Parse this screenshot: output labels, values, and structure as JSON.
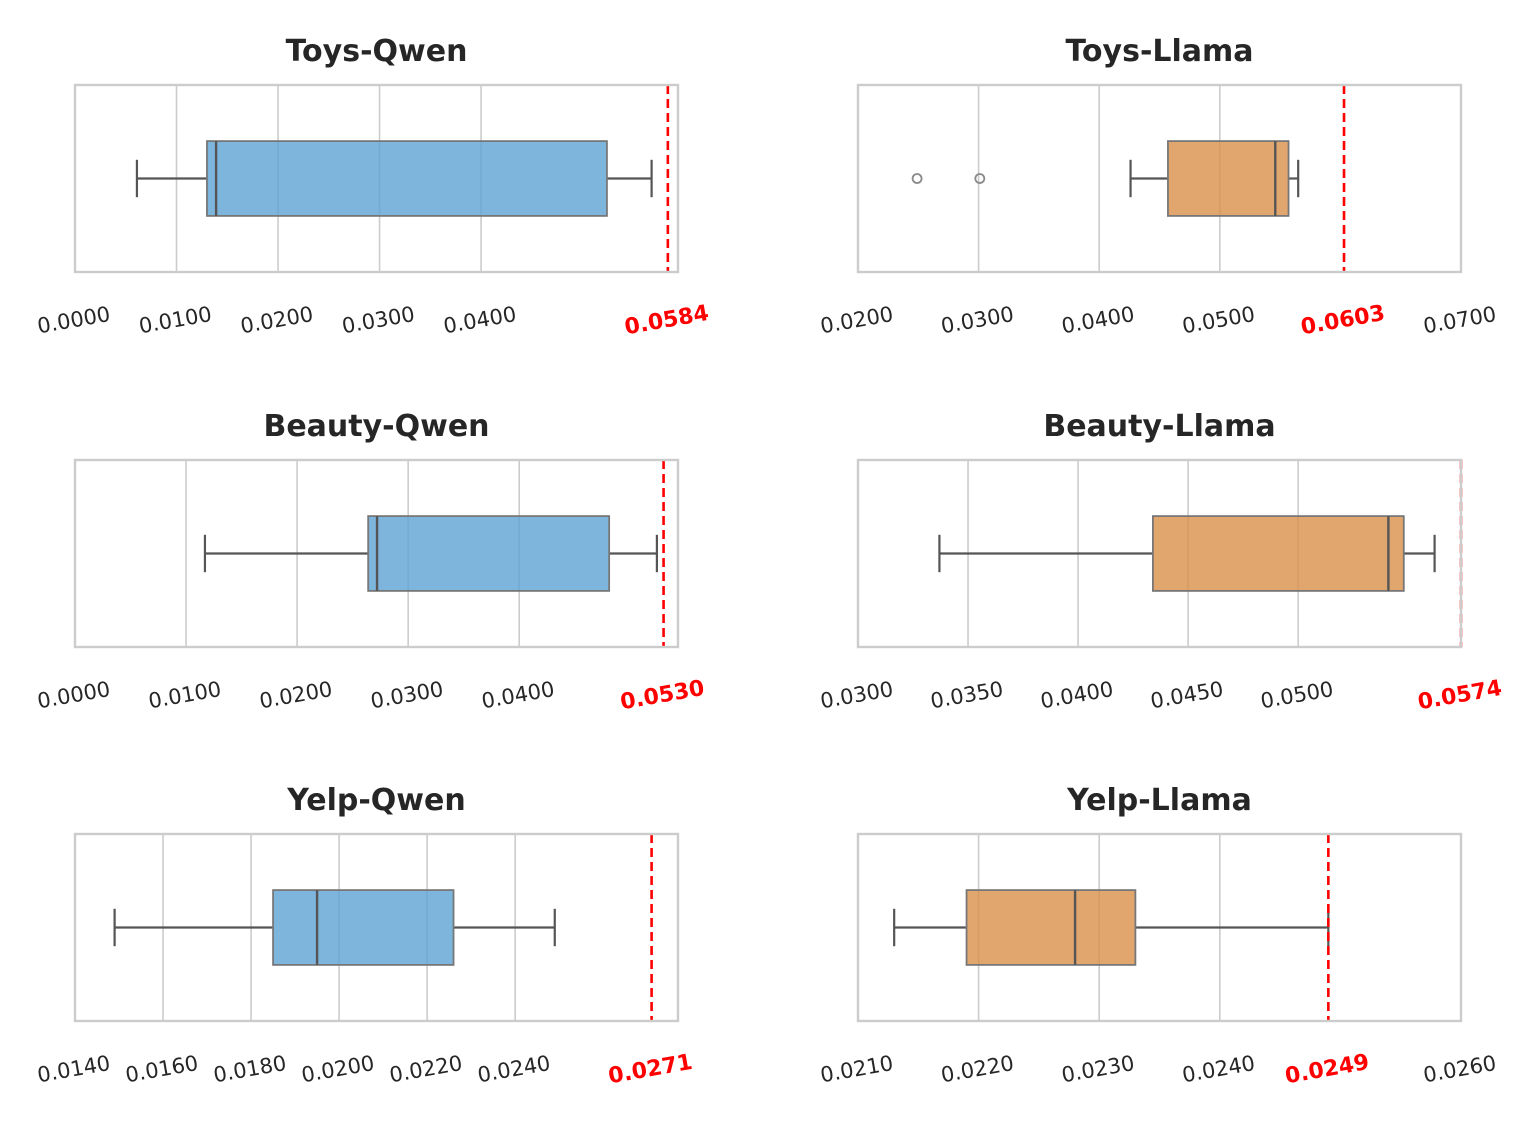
{
  "colors": {
    "qwen": "#5da2d5",
    "llama": "#d98e4a",
    "reference": "#ff0000"
  },
  "chart_data": [
    {
      "type": "box",
      "model": "qwen",
      "title": "Toys-Qwen",
      "xlim": [
        0.0,
        0.0594
      ],
      "ticks": [
        "0.0000",
        "0.0100",
        "0.0200",
        "0.0300",
        "0.0400"
      ],
      "box": {
        "whisker_low": 0.0061,
        "q1": 0.013,
        "median": 0.0139,
        "q3": 0.0524,
        "whisker_high": 0.0568,
        "outliers": []
      },
      "reference": {
        "value": 0.0584,
        "label": "0.0584"
      }
    },
    {
      "type": "box",
      "model": "llama",
      "title": "Toys-Llama",
      "xlim": [
        0.02,
        0.07
      ],
      "ticks": [
        "0.0200",
        "0.0300",
        "0.0400",
        "0.0500",
        "0.0700"
      ],
      "box": {
        "whisker_low": 0.0426,
        "q1": 0.0457,
        "median": 0.0546,
        "q3": 0.0557,
        "whisker_high": 0.0565,
        "outliers": [
          0.0249,
          0.0301
        ]
      },
      "reference": {
        "value": 0.0603,
        "label": "0.0603"
      }
    },
    {
      "type": "box",
      "model": "qwen",
      "title": "Beauty-Qwen",
      "xlim": [
        0.0,
        0.0543
      ],
      "ticks": [
        "0.0000",
        "0.0100",
        "0.0200",
        "0.0300",
        "0.0400"
      ],
      "box": {
        "whisker_low": 0.0117,
        "q1": 0.0264,
        "median": 0.0272,
        "q3": 0.0481,
        "whisker_high": 0.0524,
        "outliers": []
      },
      "reference": {
        "value": 0.053,
        "label": "0.0530"
      }
    },
    {
      "type": "box",
      "model": "llama",
      "title": "Beauty-Llama",
      "xlim": [
        0.03,
        0.0574
      ],
      "ticks": [
        "0.0300",
        "0.0350",
        "0.0400",
        "0.0450",
        "0.0500"
      ],
      "box": {
        "whisker_low": 0.0337,
        "q1": 0.0434,
        "median": 0.0541,
        "q3": 0.0548,
        "whisker_high": 0.0562,
        "outliers": []
      },
      "reference": {
        "value": 0.0574,
        "label": "0.0574"
      }
    },
    {
      "type": "box",
      "model": "qwen",
      "title": "Yelp-Qwen",
      "xlim": [
        0.014,
        0.0277
      ],
      "ticks": [
        "0.0140",
        "0.0160",
        "0.0180",
        "0.0200",
        "0.0220",
        "0.0240"
      ],
      "box": {
        "whisker_low": 0.0149,
        "q1": 0.0185,
        "median": 0.0195,
        "q3": 0.0226,
        "whisker_high": 0.0249,
        "outliers": []
      },
      "reference": {
        "value": 0.0271,
        "label": "0.0271"
      }
    },
    {
      "type": "box",
      "model": "llama",
      "title": "Yelp-Llama",
      "xlim": [
        0.021,
        0.026
      ],
      "ticks": [
        "0.0210",
        "0.0220",
        "0.0230",
        "0.0240",
        "0.0260"
      ],
      "box": {
        "whisker_low": 0.0213,
        "q1": 0.0219,
        "median": 0.0228,
        "q3": 0.0233,
        "whisker_high": 0.0249,
        "outliers": []
      },
      "reference": {
        "value": 0.0249,
        "label": "0.0249"
      }
    }
  ]
}
